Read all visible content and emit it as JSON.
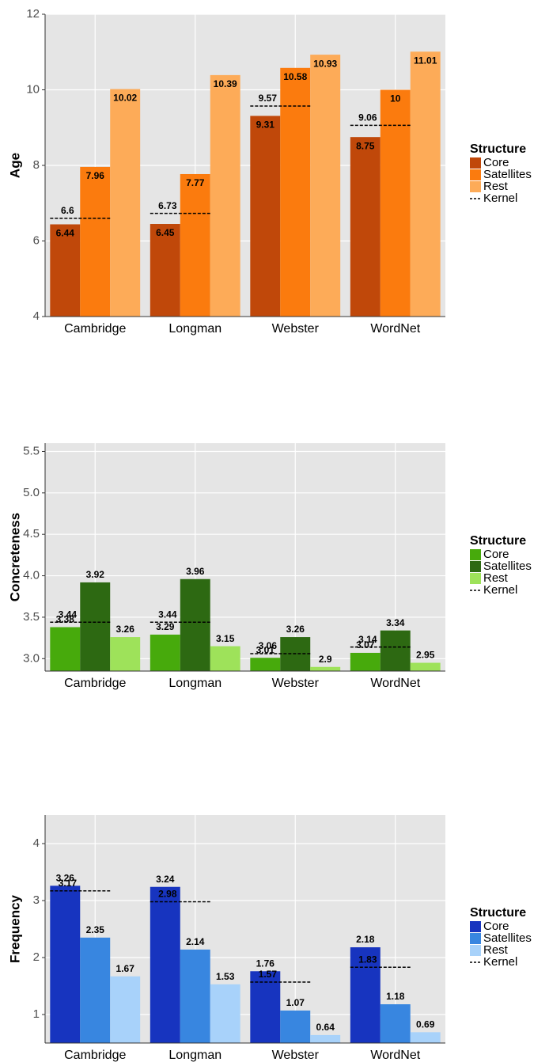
{
  "chart_data": [
    {
      "type": "bar",
      "y_label": "Age",
      "categories": [
        "Cambridge",
        "Longman",
        "Webster",
        "WordNet"
      ],
      "series": [
        {
          "name": "Core",
          "color": "#c0480a",
          "values": [
            6.44,
            6.45,
            9.31,
            8.75
          ]
        },
        {
          "name": "Satellites",
          "color": "#fb7b0e",
          "values": [
            7.96,
            7.77,
            10.58,
            10
          ]
        },
        {
          "name": "Rest",
          "color": "#fdab58",
          "values": [
            10.02,
            10.39,
            10.93,
            11.01
          ]
        }
      ],
      "kernel": {
        "name": "Kernel",
        "values": [
          6.6,
          6.73,
          9.57,
          9.06
        ]
      },
      "label_position": "inside",
      "ylim": [
        4,
        12
      ],
      "yticks": [
        4,
        6,
        8,
        10,
        12
      ],
      "grid": true,
      "legend_title": "Structure",
      "legend": "right"
    },
    {
      "type": "bar",
      "y_label": "Concreteness",
      "categories": [
        "Cambridge",
        "Longman",
        "Webster",
        "WordNet"
      ],
      "series": [
        {
          "name": "Core",
          "color": "#47aa0c",
          "values": [
            3.38,
            3.29,
            3.01,
            3.07
          ]
        },
        {
          "name": "Satellites",
          "color": "#2d6912",
          "values": [
            3.92,
            3.96,
            3.26,
            3.34
          ]
        },
        {
          "name": "Rest",
          "color": "#9ee25a",
          "values": [
            3.26,
            3.15,
            2.9,
            2.95
          ]
        }
      ],
      "kernel": {
        "name": "Kernel",
        "values": [
          3.44,
          3.44,
          3.06,
          3.14
        ]
      },
      "label_position": "outside",
      "ylim": [
        2.85,
        5.6
      ],
      "yticks": [
        {
          "value": 3,
          "label": "3.0"
        },
        3.5,
        {
          "value": 4,
          "label": "4.0"
        },
        4.5,
        {
          "value": 5,
          "label": "5.0"
        },
        5.5
      ],
      "grid": true,
      "legend_title": "Structure",
      "legend": "right"
    },
    {
      "type": "bar",
      "y_label": "Frequency",
      "categories": [
        "Cambridge",
        "Longman",
        "Webster",
        "WordNet"
      ],
      "series": [
        {
          "name": "Core",
          "color": "#1734bf",
          "values": [
            3.26,
            3.24,
            1.76,
            2.18
          ]
        },
        {
          "name": "Satellites",
          "color": "#3886e0",
          "values": [
            2.35,
            2.14,
            1.07,
            1.18
          ]
        },
        {
          "name": "Rest",
          "color": "#a8d2fa",
          "values": [
            1.67,
            1.53,
            0.64,
            0.69
          ]
        }
      ],
      "kernel": {
        "name": "Kernel",
        "values": [
          3.17,
          2.98,
          1.57,
          1.83
        ]
      },
      "label_position": "outside",
      "ylim": [
        0.5,
        4.5
      ],
      "yticks": [
        1,
        2,
        3,
        4
      ],
      "grid": true,
      "legend_title": "Structure",
      "legend": "right"
    }
  ]
}
